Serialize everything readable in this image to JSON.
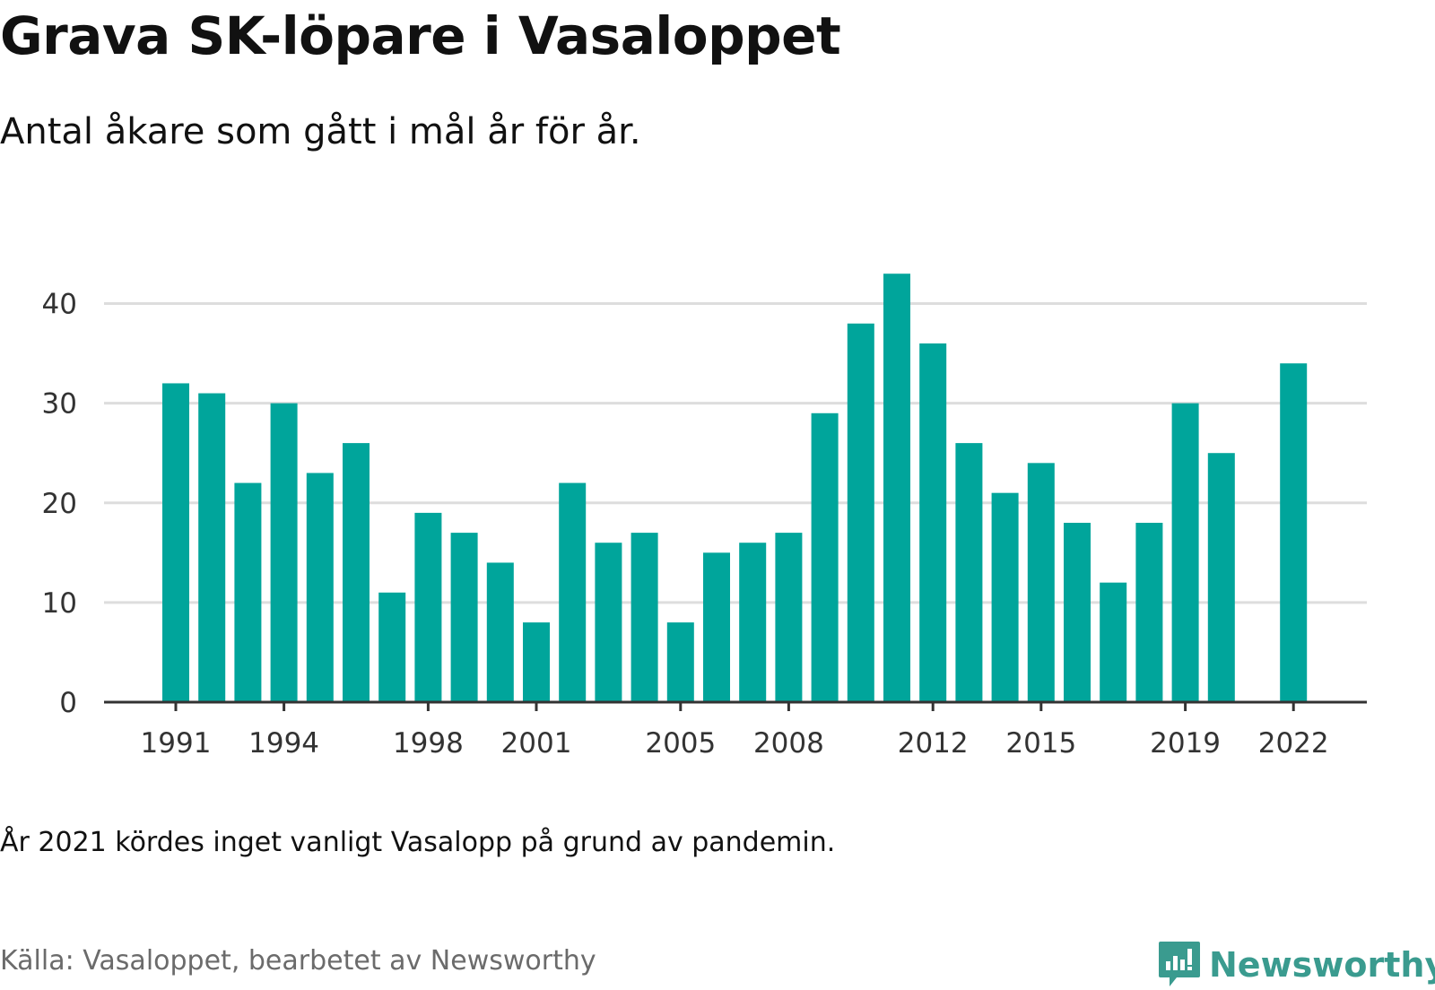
{
  "header": {
    "title": "Grava SK-löpare i Vasaloppet",
    "subtitle": "Antal åkare som gått i mål år för år."
  },
  "footer": {
    "note": "År 2021 kördes inget vanligt Vasalopp på grund av pandemin.",
    "source": "Källa: Vasaloppet, bearbetet av Newsworthy",
    "logo_text": "Newsworthy",
    "logo_icon": "bar-chart-speech-bubble-icon"
  },
  "colors": {
    "bar": "#00a59b",
    "logo": "#3a9b8f",
    "grid": "#dddddd",
    "axis": "#333333",
    "tick_label": "#333333"
  },
  "chart_data": {
    "type": "bar",
    "title": "Grava SK-löpare i Vasaloppet",
    "subtitle": "Antal åkare som gått i mål år för år.",
    "xlabel": "",
    "ylabel": "",
    "ylim": [
      0,
      45
    ],
    "yticks": [
      0,
      10,
      20,
      30,
      40
    ],
    "xtick_labels": [
      "1991",
      "1994",
      "1998",
      "2001",
      "2005",
      "2008",
      "2012",
      "2015",
      "2019",
      "2022"
    ],
    "grid": "horizontal",
    "legend": "none",
    "categories": [
      "1991",
      "1992",
      "1993",
      "1994",
      "1995",
      "1996",
      "1997",
      "1998",
      "1999",
      "2000",
      "2001",
      "2002",
      "2003",
      "2004",
      "2005",
      "2006",
      "2007",
      "2008",
      "2009",
      "2010",
      "2011",
      "2012",
      "2013",
      "2014",
      "2015",
      "2016",
      "2017",
      "2018",
      "2019",
      "2020",
      "2021",
      "2022"
    ],
    "series": [
      {
        "values": [
          32,
          31,
          22,
          30,
          23,
          26,
          11,
          19,
          17,
          14,
          8,
          22,
          16,
          17,
          8,
          15,
          16,
          17,
          29,
          38,
          43,
          36,
          26,
          21,
          24,
          18,
          12,
          18,
          30,
          25,
          null,
          34
        ]
      }
    ]
  }
}
